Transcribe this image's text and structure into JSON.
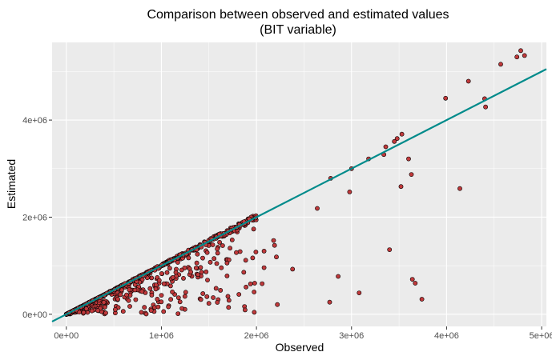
{
  "chart_data": {
    "type": "scatter",
    "title": "Comparison between observed and estimated values",
    "subtitle": "(BIT variable)",
    "xlabel": "Observed",
    "ylabel": "Estimated",
    "xlim": [
      -150000,
      5050000
    ],
    "ylim": [
      -250000,
      5600000
    ],
    "x_ticks": [
      0,
      1000000,
      2000000,
      3000000,
      4000000,
      5000000
    ],
    "x_tick_labels": [
      "0e+00",
      "1e+06",
      "2e+06",
      "3e+06",
      "4e+06",
      "5e+06"
    ],
    "y_ticks": [
      0,
      2000000,
      4000000
    ],
    "y_tick_labels": [
      "0e+00",
      "2e+06",
      "4e+06"
    ],
    "grid": true,
    "colors": {
      "panel_background": "#ebebeb",
      "grid_major": "#ffffff",
      "point_fill": "#c0393b",
      "point_stroke": "#000000",
      "fit_line": "#008b8b"
    },
    "fit_line": {
      "intercept": 0,
      "slope": 1.0
    },
    "highlighted_points": [
      {
        "x": 4780000,
        "y": 5430000
      },
      {
        "x": 4820000,
        "y": 5330000
      },
      {
        "x": 4740000,
        "y": 5300000
      },
      {
        "x": 4570000,
        "y": 5150000
      },
      {
        "x": 4230000,
        "y": 4800000
      },
      {
        "x": 3990000,
        "y": 4450000
      },
      {
        "x": 4400000,
        "y": 4440000
      },
      {
        "x": 4410000,
        "y": 4270000
      },
      {
        "x": 3530000,
        "y": 3710000
      },
      {
        "x": 3480000,
        "y": 3620000
      },
      {
        "x": 3450000,
        "y": 3560000
      },
      {
        "x": 3360000,
        "y": 3450000
      },
      {
        "x": 3340000,
        "y": 3290000
      },
      {
        "x": 3600000,
        "y": 3200000
      },
      {
        "x": 3180000,
        "y": 3200000
      },
      {
        "x": 3000000,
        "y": 3000000
      },
      {
        "x": 2780000,
        "y": 2800000
      },
      {
        "x": 2980000,
        "y": 2520000
      },
      {
        "x": 3520000,
        "y": 2630000
      },
      {
        "x": 3630000,
        "y": 2880000
      },
      {
        "x": 4140000,
        "y": 2590000
      },
      {
        "x": 2640000,
        "y": 2180000
      },
      {
        "x": 3400000,
        "y": 1330000
      },
      {
        "x": 3640000,
        "y": 720000
      },
      {
        "x": 3670000,
        "y": 640000
      },
      {
        "x": 3740000,
        "y": 310000
      },
      {
        "x": 3080000,
        "y": 440000
      },
      {
        "x": 2860000,
        "y": 780000
      },
      {
        "x": 2770000,
        "y": 250000
      },
      {
        "x": 2380000,
        "y": 930000
      },
      {
        "x": 2080000,
        "y": 1300000
      },
      {
        "x": 2180000,
        "y": 1520000
      },
      {
        "x": 2190000,
        "y": 1420000
      },
      {
        "x": 2210000,
        "y": 1180000
      },
      {
        "x": 2060000,
        "y": 630000
      },
      {
        "x": 2080000,
        "y": 960000
      },
      {
        "x": 2220000,
        "y": 200000
      },
      {
        "x": 1890000,
        "y": 560000
      },
      {
        "x": 1880000,
        "y": 90000
      },
      {
        "x": 1700000,
        "y": 370000
      }
    ],
    "dense_cloud": {
      "count": 850,
      "x_range": [
        0,
        2000000
      ],
      "note_description": "many overlapping points clustered near y≈x with spread below the line"
    }
  }
}
